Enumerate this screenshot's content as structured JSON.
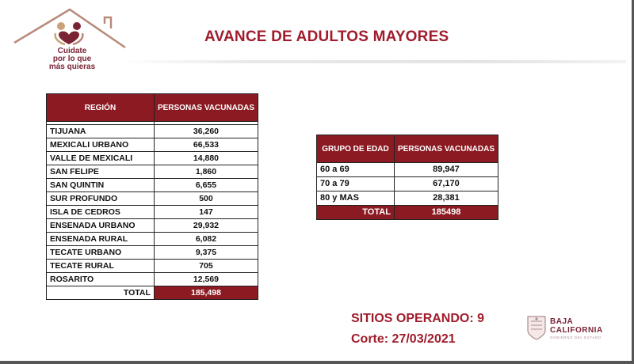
{
  "logo": {
    "line1": "Cuidate",
    "line2": "por lo que",
    "line3": "más quieras"
  },
  "title": "AVANCE DE ADULTOS MAYORES",
  "region_table": {
    "headers": [
      "REGIÓN",
      "PERSONAS VACUNADAS"
    ],
    "rows": [
      {
        "region": "TIJUANA",
        "value": "36,260"
      },
      {
        "region": "MEXICALI URBANO",
        "value": "66,533"
      },
      {
        "region": "VALLE DE MEXICALI",
        "value": "14,880"
      },
      {
        "region": "SAN FELIPE",
        "value": "1,860"
      },
      {
        "region": "SAN QUINTIN",
        "value": "6,655"
      },
      {
        "region": "SUR PROFUNDO",
        "value": "500"
      },
      {
        "region": "ISLA DE CEDROS",
        "value": "147"
      },
      {
        "region": "ENSENADA URBANO",
        "value": "29,932"
      },
      {
        "region": "ENSENADA RURAL",
        "value": "6,082"
      },
      {
        "region": "TECATE URBANO",
        "value": "9,375"
      },
      {
        "region": "TECATE RURAL",
        "value": "705"
      },
      {
        "region": "ROSARITO",
        "value": "12,569"
      }
    ],
    "total_label": "TOTAL",
    "total_value": "185,498"
  },
  "age_table": {
    "headers": [
      "GRUPO DE EDAD",
      "PERSONAS VACUNADAS"
    ],
    "rows": [
      {
        "group": "60 a 69",
        "value": "89,947"
      },
      {
        "group": "70 a 79",
        "value": "67,170"
      },
      {
        "group": "80 y MAS",
        "value": "28,381"
      }
    ],
    "total_label": "TOTAL",
    "total_value": "185498"
  },
  "sitios": "SITIOS OPERANDO: 9",
  "corte": "Corte: 27/03/2021",
  "bc_logo": {
    "line1": "BAJA",
    "line2": "CALIFORNIA",
    "sub": "GOBIERNO DEL ESTADO"
  },
  "colors": {
    "header_bg": "#8b1a22",
    "title": "#a01c2c",
    "logo_brown": "#b98a7a",
    "logo_wine": "#7a2335"
  }
}
